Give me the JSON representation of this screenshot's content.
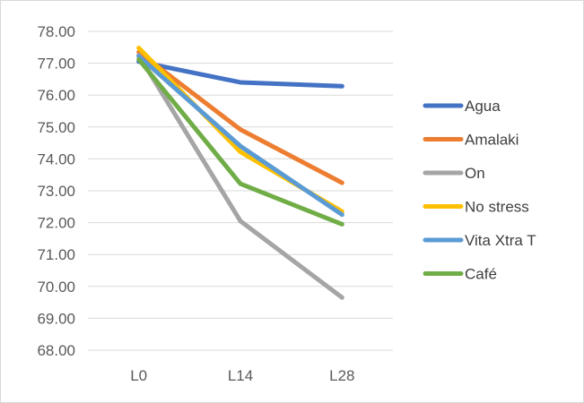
{
  "chart_data": {
    "type": "line",
    "title": "",
    "xlabel": "",
    "ylabel": "",
    "categories": [
      "L0",
      "L14",
      "L28"
    ],
    "ylim": [
      68.0,
      78.0
    ],
    "ytick_step": 1.0,
    "yticks": [
      "68.00",
      "69.00",
      "70.00",
      "71.00",
      "72.00",
      "73.00",
      "74.00",
      "75.00",
      "76.00",
      "77.00",
      "78.00"
    ],
    "grid": true,
    "legend_position": "right",
    "series": [
      {
        "name": "Agua",
        "color": "#4472C4",
        "values": [
          77.05,
          76.4,
          76.28
        ]
      },
      {
        "name": "Amalaki",
        "color": "#ED7D31",
        "values": [
          77.35,
          74.92,
          73.25
        ]
      },
      {
        "name": "On",
        "color": "#A5A5A5",
        "values": [
          77.25,
          72.05,
          69.65
        ]
      },
      {
        "name": "No stress",
        "color": "#FFC000",
        "values": [
          77.48,
          74.22,
          72.35
        ]
      },
      {
        "name": "Vita Xtra T",
        "color": "#5B9BD5",
        "values": [
          77.22,
          74.4,
          72.25
        ]
      },
      {
        "name": "Café",
        "color": "#70AD47",
        "values": [
          77.12,
          73.22,
          71.95
        ]
      }
    ]
  }
}
